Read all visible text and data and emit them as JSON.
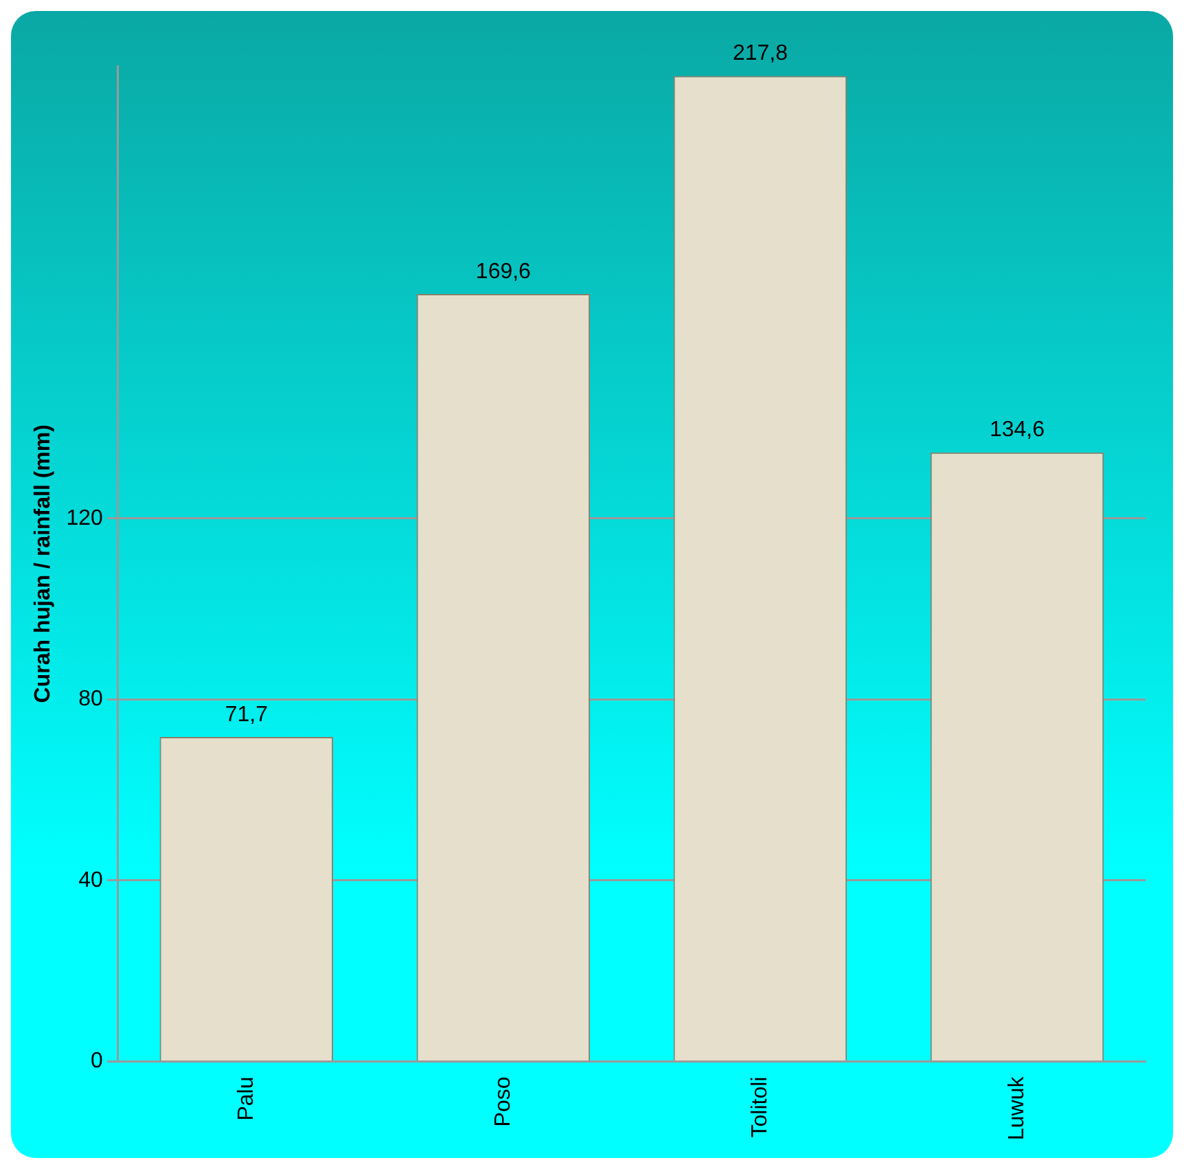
{
  "chart_data": {
    "type": "bar",
    "ylabel": "Curah hujan / rainfall (mm)",
    "categories": [
      "Palu",
      "Poso",
      "Tolitoli",
      "Luwuk"
    ],
    "values": [
      71.7,
      169.6,
      217.8,
      134.6
    ],
    "value_labels": [
      "71,7",
      "169,6",
      "217,8",
      "134,6"
    ],
    "color": "#e6dfcb",
    "ylim": [
      0,
      220
    ],
    "yticks": [
      0,
      40,
      80,
      120
    ],
    "grid": "y",
    "legend": false
  }
}
